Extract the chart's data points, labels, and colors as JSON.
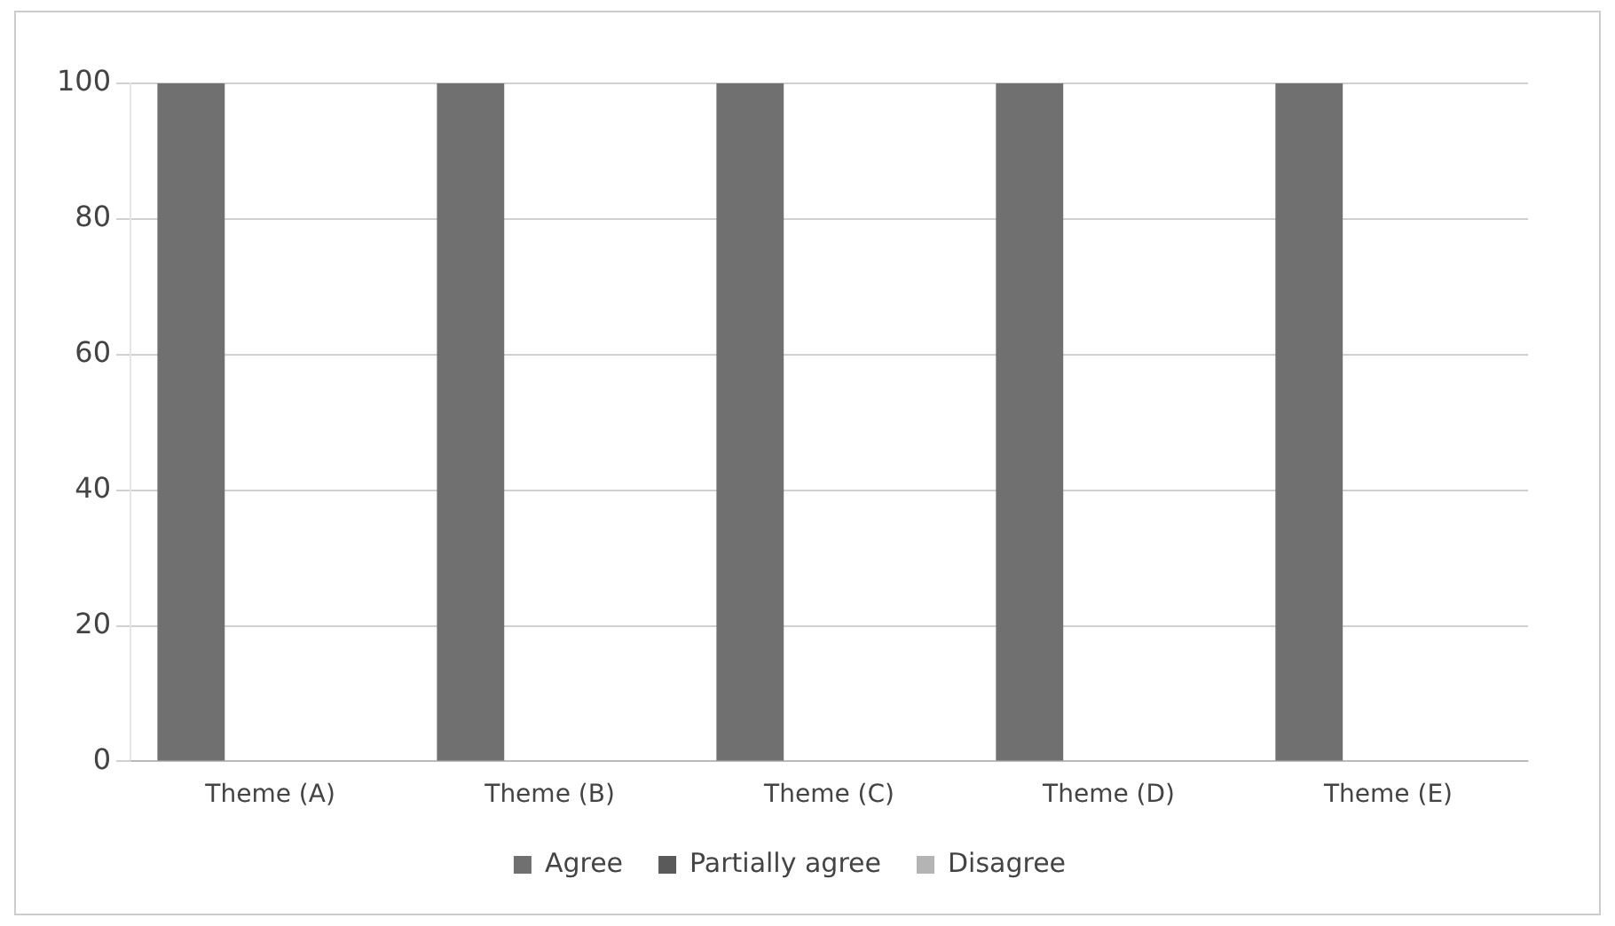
{
  "chart_data": {
    "type": "bar",
    "categories": [
      "Theme (A)",
      "Theme (B)",
      "Theme (C)",
      "Theme (D)",
      "Theme (E)"
    ],
    "series": [
      {
        "name": "Agree",
        "color": "#707070",
        "values": [
          100,
          100,
          100,
          100,
          100
        ]
      },
      {
        "name": "Partially agree",
        "color": "#5a5a5a",
        "values": [
          0,
          0,
          0,
          0,
          0
        ]
      },
      {
        "name": "Disagree",
        "color": "#b4b4b4",
        "values": [
          0,
          0,
          0,
          0,
          0
        ]
      }
    ],
    "ylim": [
      0,
      100
    ],
    "yticks": [
      0,
      20,
      40,
      60,
      80,
      100
    ],
    "grid": "y",
    "legend": "bottom"
  }
}
